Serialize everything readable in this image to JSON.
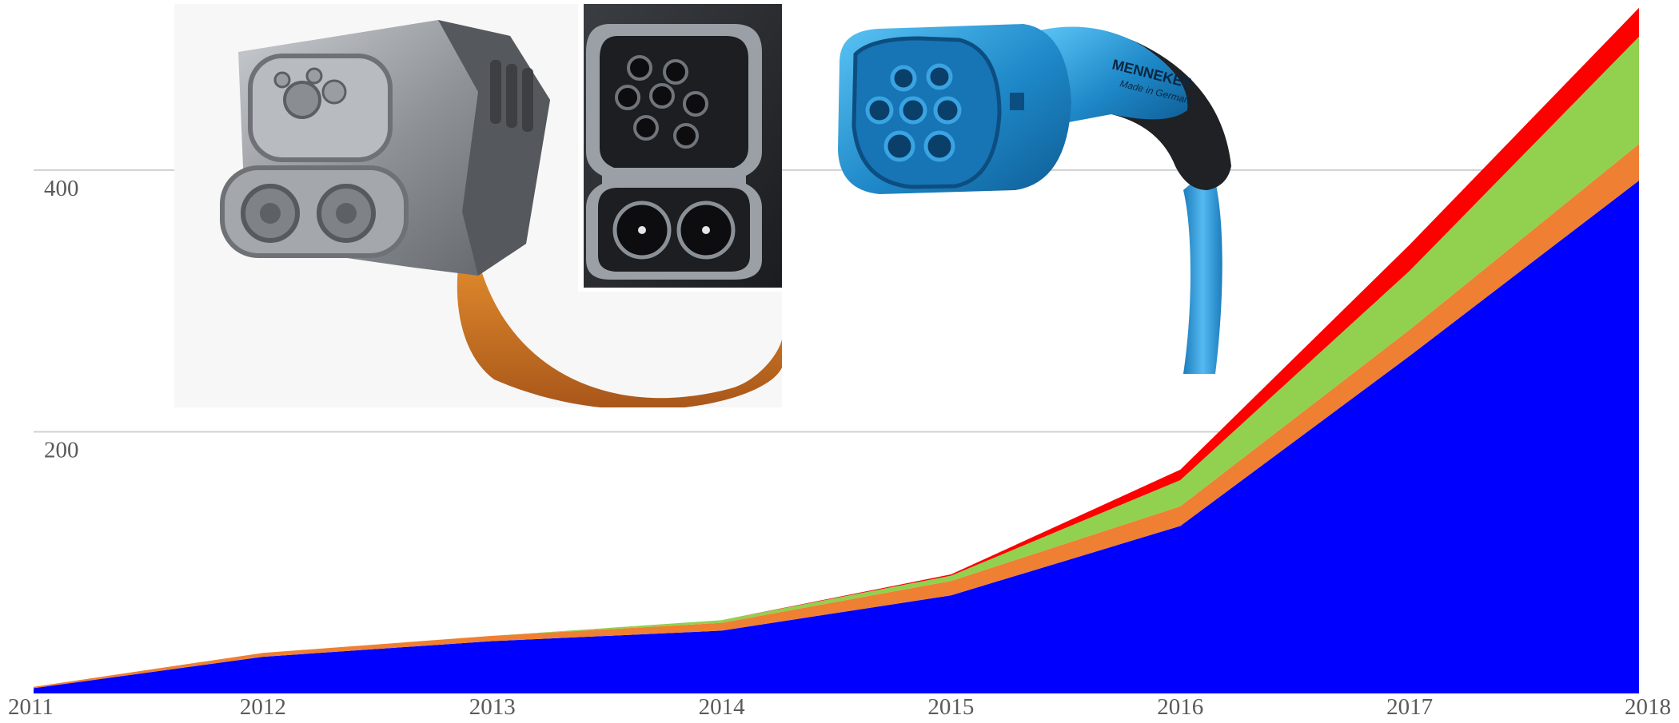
{
  "chart_data": {
    "type": "area",
    "stacked": true,
    "title": "",
    "xlabel": "",
    "ylabel": "",
    "x": [
      2011,
      2012,
      2013,
      2014,
      2015,
      2016,
      2017,
      2018
    ],
    "x_tick_labels": [
      "2011",
      "2012",
      "2013",
      "2014",
      "2015",
      "2016",
      "2017",
      "2018"
    ],
    "y_tick_labels": [
      "200",
      "400"
    ],
    "y_ticks": [
      200,
      400
    ],
    "ylim": [
      0,
      530
    ],
    "grid": true,
    "legend": "none",
    "series": [
      {
        "values": [
          4,
          28,
          40,
          48,
          75,
          128,
          258,
          392
        ],
        "color": "#0000ff"
      },
      {
        "values": [
          1,
          3,
          4,
          6,
          11,
          15,
          20,
          28
        ],
        "color": "#ef7f32"
      },
      {
        "values": [
          0,
          0,
          0,
          2,
          4,
          20,
          45,
          82
        ],
        "color": "#92d050"
      },
      {
        "values": [
          0,
          0,
          0,
          0,
          1,
          8,
          20,
          22
        ],
        "color": "#ff0000"
      }
    ]
  },
  "images": [
    {
      "name": "ccs-combo-connector-photo",
      "brand_text": ""
    },
    {
      "name": "type2-connector-photo",
      "brand_text": "MENNEKES",
      "brand_subtext": "Made in Germany"
    }
  ]
}
